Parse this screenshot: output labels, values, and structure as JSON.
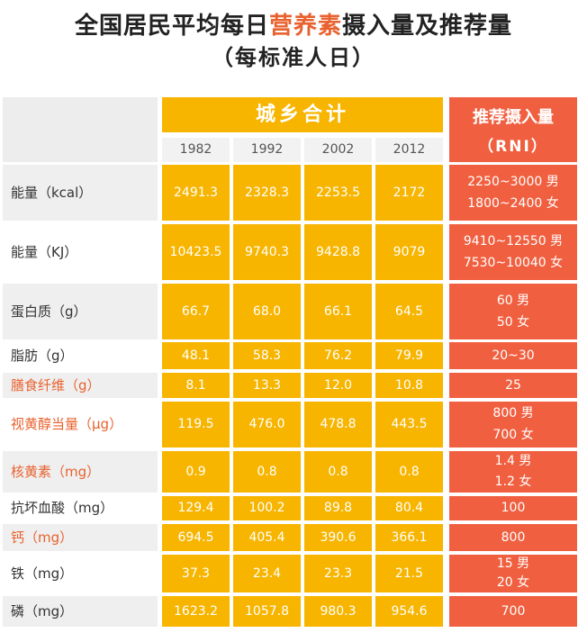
{
  "title_line1_pre": "全国居民平均每日",
  "title_line1_highlight": "营养素",
  "title_line1_post": "摄入量及推荐量",
  "title_line2": "（每标准人日）",
  "group_header": "城乡合计",
  "years": [
    "1982",
    "1992",
    "2002",
    "2012"
  ],
  "rni_header_line1": "推荐摄入量",
  "rni_header_line2": "（RNI）",
  "chart_data": {
    "type": "table",
    "columns": [
      "1982",
      "1992",
      "2002",
      "2012",
      "推荐摄入量（RNI）"
    ],
    "rows": [
      {
        "label": "能量（kcal）",
        "values": [
          "2491.3",
          "2328.3",
          "2253.5",
          "2172"
        ],
        "rni": [
          "2250~3000 男",
          "1800~2400 女"
        ],
        "label_color": "#333333"
      },
      {
        "label": "能量（KJ）",
        "values": [
          "10423.5",
          "9740.3",
          "9428.8",
          "9079"
        ],
        "rni": [
          "9410~12550 男",
          "7530~10040 女"
        ],
        "label_color": "#333333"
      },
      {
        "label": "蛋白质（g）",
        "values": [
          "66.7",
          "68.0",
          "66.1",
          "64.5"
        ],
        "rni": [
          "60 男",
          "50 女"
        ],
        "label_color": "#333333"
      },
      {
        "label": "脂肪（g）",
        "values": [
          "48.1",
          "58.3",
          "76.2",
          "79.9"
        ],
        "rni": [
          "20~30"
        ],
        "label_color": "#333333"
      },
      {
        "label": "膳食纤维（g）",
        "values": [
          "8.1",
          "13.3",
          "12.0",
          "10.8"
        ],
        "rni": [
          "25"
        ],
        "label_color": "#e8622f"
      },
      {
        "label": "视黄醇当量（μg）",
        "values": [
          "119.5",
          "476.0",
          "478.8",
          "443.5"
        ],
        "rni": [
          "800 男",
          "700 女"
        ],
        "label_color": "#e8622f"
      },
      {
        "label": "核黄素（mg）",
        "values": [
          "0.9",
          "0.8",
          "0.8",
          "0.8"
        ],
        "rni": [
          "1.4 男",
          "1.2 女"
        ],
        "label_color": "#e8622f"
      },
      {
        "label": "抗坏血酸（mg）",
        "values": [
          "129.4",
          "100.2",
          "89.8",
          "80.4"
        ],
        "rni": [
          "100"
        ],
        "label_color": "#333333"
      },
      {
        "label": "钙（mg）",
        "values": [
          "694.5",
          "405.4",
          "390.6",
          "366.1"
        ],
        "rni": [
          "800"
        ],
        "label_color": "#e8622f"
      },
      {
        "label": "铁（mg）",
        "values": [
          "37.3",
          "23.4",
          "23.3",
          "21.5"
        ],
        "rni": [
          "15 男",
          "20 女"
        ],
        "label_color": "#333333"
      },
      {
        "label": "磷（mg）",
        "values": [
          "1623.2",
          "1057.8",
          "980.3",
          "954.6"
        ],
        "rni": [
          "700"
        ],
        "label_color": "#333333"
      }
    ]
  },
  "colors": {
    "yellow": "#f7b500",
    "red": "#f06040",
    "highlight_text": "#e8622f"
  }
}
